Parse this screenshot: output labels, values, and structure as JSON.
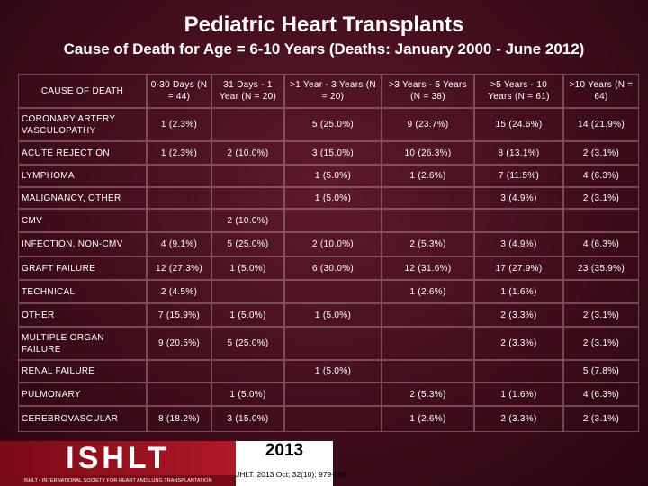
{
  "header": {
    "title": "Pediatric Heart Transplants",
    "subtitle": "Cause of Death for Age = 6-10 Years (Deaths: January 2000 - June 2012)"
  },
  "table": {
    "columns": [
      "CAUSE OF DEATH",
      "0-30 Days (N = 44)",
      "31 Days - 1 Year (N = 20)",
      ">1 Year - 3 Years (N = 20)",
      ">3 Years - 5 Years (N = 38)",
      ">5 Years - 10 Years (N = 61)",
      ">10 Years (N = 64)"
    ],
    "rows": [
      [
        "CORONARY ARTERY VASCULOPATHY",
        "1 (2.3%)",
        null,
        "5 (25.0%)",
        "9 (23.7%)",
        "15 (24.6%)",
        "14 (21.9%)"
      ],
      [
        "ACUTE REJECTION",
        "1 (2.3%)",
        "2 (10.0%)",
        "3 (15.0%)",
        "10 (26.3%)",
        "8 (13.1%)",
        "2 (3.1%)"
      ],
      [
        "LYMPHOMA",
        null,
        null,
        "1 (5.0%)",
        "1 (2.6%)",
        "7 (11.5%)",
        "4 (6.3%)"
      ],
      [
        "MALIGNANCY, OTHER",
        null,
        null,
        "1 (5.0%)",
        null,
        "3 (4.9%)",
        "2 (3.1%)"
      ],
      [
        "CMV",
        null,
        "2 (10.0%)",
        null,
        null,
        null,
        null
      ],
      [
        "INFECTION, NON-CMV",
        "4 (9.1%)",
        "5 (25.0%)",
        "2 (10.0%)",
        "2 (5.3%)",
        "3 (4.9%)",
        "4 (6.3%)"
      ],
      [
        "GRAFT FAILURE",
        "12 (27.3%)",
        "1 (5.0%)",
        "6 (30.0%)",
        "12 (31.6%)",
        "17 (27.9%)",
        "23 (35.9%)"
      ],
      [
        "TECHNICAL",
        "2 (4.5%)",
        null,
        null,
        "1 (2.6%)",
        "1 (1.6%)",
        null
      ],
      [
        "OTHER",
        "7 (15.9%)",
        "1 (5.0%)",
        "1 (5.0%)",
        null,
        "2 (3.3%)",
        "2 (3.1%)"
      ],
      [
        "MULTIPLE ORGAN FAILURE",
        "9 (20.5%)",
        "5 (25.0%)",
        null,
        null,
        "2 (3.3%)",
        "2 (3.1%)"
      ],
      [
        "RENAL FAILURE",
        null,
        null,
        "1 (5.0%)",
        null,
        null,
        "5 (7.8%)"
      ],
      [
        "PULMONARY",
        null,
        "1 (5.0%)",
        null,
        "2 (5.3%)",
        "1 (1.6%)",
        "4 (6.3%)"
      ],
      [
        "CEREBROVASCULAR",
        "8 (18.2%)",
        "3 (15.0%)",
        null,
        "1 (2.6%)",
        "2 (3.3%)",
        "2 (3.1%)"
      ]
    ]
  },
  "footer": {
    "logo": "ISHLT",
    "logo_tagline": "ISHLT • INTERNATIONAL SOCIETY FOR HEART AND LUNG TRANSPLANTATION",
    "year": "2013",
    "citation": "JHLT. 2013 Oct; 32(10): 979-988"
  }
}
